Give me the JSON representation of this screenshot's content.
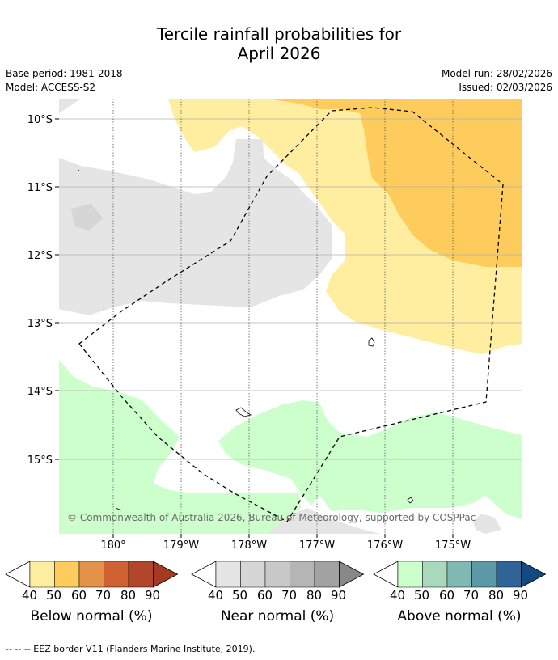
{
  "header": {
    "title_line1": "Tercile rainfall probabilities for",
    "title_line2": "April 2026",
    "base_period": "Base period: 1981-2018",
    "model": "Model: ACCESS-S2",
    "model_run": "Model run: 28/02/2026",
    "issued": "Issued: 02/03/2026"
  },
  "map": {
    "lat_labels": [
      "10°S",
      "11°S",
      "12°S",
      "13°S",
      "14°S",
      "15°S"
    ],
    "lon_labels": [
      "180°",
      "179°W",
      "178°W",
      "177°W",
      "176°W",
      "175°W"
    ],
    "copyright": "© Commonwealth of Australia 2026, Bureau of Meteorology, supported by COSPPac"
  },
  "legend": {
    "ticks": [
      "40",
      "50",
      "60",
      "70",
      "80",
      "90"
    ],
    "below": {
      "title": "Below normal (%)",
      "colors": [
        "#ffeda0",
        "#fecc5c",
        "#e3944a",
        "#cf6132",
        "#b2462a",
        "#a33a22"
      ]
    },
    "near": {
      "title": "Near normal (%)",
      "colors": [
        "#e5e5e5",
        "#d6d6d6",
        "#c8c8c8",
        "#b5b5b5",
        "#a2a2a2",
        "#888888"
      ]
    },
    "above": {
      "title": "Above normal (%)",
      "colors": [
        "#ccffcc",
        "#a8d9bd",
        "#82b8b3",
        "#5c98a5",
        "#2f6499",
        "#134a80"
      ]
    }
  },
  "footer": {
    "eez_note": "-- -- -- EEZ border V11 (Flanders Marine Institute, 2019)."
  }
}
